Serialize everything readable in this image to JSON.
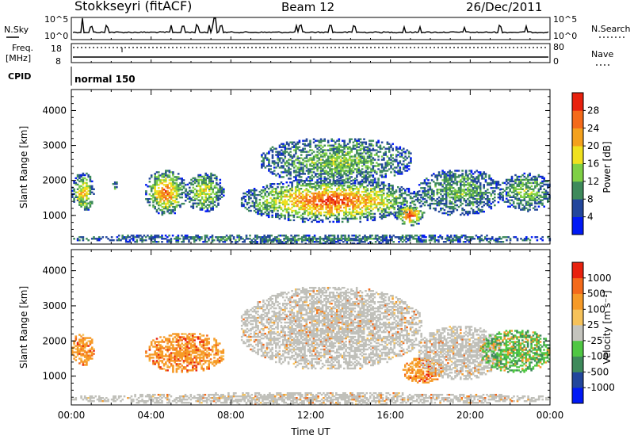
{
  "header": {
    "station": "Stokkseyri (fitACF)",
    "beam": "Beam 12",
    "date": "26/Dec/2011"
  },
  "top_panel": {
    "nsky_label": "N.Sky",
    "nsky_ticks": [
      "10^5",
      "10^0"
    ],
    "nsearch_label": "N.Search",
    "nsearch_ticks": [
      "10^5",
      "10^0"
    ],
    "freq_label_1": "Freq.",
    "freq_label_2": "[MHz]",
    "freq_ticks": [
      "18",
      "8"
    ],
    "nave_label": "Nave",
    "nave_ticks": [
      "80",
      "0"
    ],
    "cpid_label": "CPID",
    "cpid_value": "normal 150"
  },
  "colors": {
    "power_scale": [
      "#0019f5",
      "#22469c",
      "#3e8a5b",
      "#7fd045",
      "#f0e11e",
      "#f4a11d",
      "#f46a1a",
      "#e8210e"
    ],
    "velocity_scale": [
      "#e8210e",
      "#f46a1a",
      "#f69a27",
      "#f6c25a",
      "#c4c4bd",
      "#4fc743",
      "#3e8a5b",
      "#22469c",
      "#0019f5"
    ],
    "gray": "#c0c0ba"
  },
  "chart_data": [
    {
      "type": "heatmap",
      "name": "power",
      "ylabel": "Slant Range [km]",
      "xlabel": "Time UT",
      "x_ticks": [
        "00:00",
        "04:00",
        "08:00",
        "12:00",
        "16:00",
        "20:00",
        "00:00"
      ],
      "y_ticks": [
        "1000",
        "2000",
        "3000",
        "4000"
      ],
      "xlim_hours": [
        0,
        24
      ],
      "ylim_km": [
        180,
        4600
      ],
      "colorbar_label": "Power [dB]",
      "colorbar_ticks": [
        "4",
        "8",
        "12",
        "16",
        "20",
        "24",
        "28"
      ],
      "regions": [
        {
          "t0": 0.0,
          "t1": 1.1,
          "r0": 1100,
          "r1": 2200,
          "core": 0.55
        },
        {
          "t0": 2.05,
          "t1": 2.3,
          "r0": 1700,
          "r1": 2000,
          "core": 0.3
        },
        {
          "t0": 3.7,
          "t1": 5.7,
          "r0": 1000,
          "r1": 2300,
          "core": 0.75
        },
        {
          "t0": 5.7,
          "t1": 7.6,
          "r0": 1100,
          "r1": 2200,
          "core": 0.45
        },
        {
          "t0": 8.5,
          "t1": 17.5,
          "r0": 800,
          "r1": 2000,
          "core": 0.85
        },
        {
          "t0": 9.5,
          "t1": 17.0,
          "r0": 1900,
          "r1": 3200,
          "core": 0.3
        },
        {
          "t0": 16.2,
          "t1": 17.7,
          "r0": 700,
          "r1": 1300,
          "core": 0.9
        },
        {
          "t0": 17.4,
          "t1": 21.5,
          "r0": 1000,
          "r1": 2300,
          "core": 0.25
        },
        {
          "t0": 21.5,
          "t1": 24.0,
          "r0": 1100,
          "r1": 2200,
          "core": 0.3
        },
        {
          "t0": 0.0,
          "t1": 24.0,
          "r0": 180,
          "r1": 450,
          "core": 0.1
        }
      ]
    },
    {
      "type": "heatmap",
      "name": "velocity",
      "ylabel": "Slant Range [km]",
      "xlabel": "Time UT",
      "x_ticks": [
        "00:00",
        "04:00",
        "08:00",
        "12:00",
        "16:00",
        "20:00",
        "00:00"
      ],
      "y_ticks": [
        "1000",
        "2000",
        "3000",
        "4000"
      ],
      "xlim_hours": [
        0,
        24
      ],
      "ylim_km": [
        180,
        4600
      ],
      "colorbar_label": "Velocity [m s^-1]",
      "colorbar_ticks": [
        "1000",
        "500",
        "100",
        "25",
        "-25",
        "-100",
        "-500",
        "-1000"
      ],
      "regions": [
        {
          "t0": 0.0,
          "t1": 1.1,
          "r0": 1300,
          "r1": 2200,
          "kind": "orange"
        },
        {
          "t0": 3.7,
          "t1": 7.6,
          "r0": 1100,
          "r1": 2200,
          "kind": "orange"
        },
        {
          "t0": 8.5,
          "t1": 17.5,
          "r0": 1200,
          "r1": 3500,
          "kind": "gray"
        },
        {
          "t0": 16.6,
          "t1": 18.6,
          "r0": 800,
          "r1": 1500,
          "kind": "orange"
        },
        {
          "t0": 17.4,
          "t1": 21.5,
          "r0": 900,
          "r1": 2400,
          "kind": "gray"
        },
        {
          "t0": 20.5,
          "t1": 24.0,
          "r0": 1100,
          "r1": 2300,
          "kind": "green"
        },
        {
          "t0": 0.0,
          "t1": 24.0,
          "r0": 180,
          "r1": 500,
          "kind": "gray"
        }
      ]
    }
  ]
}
